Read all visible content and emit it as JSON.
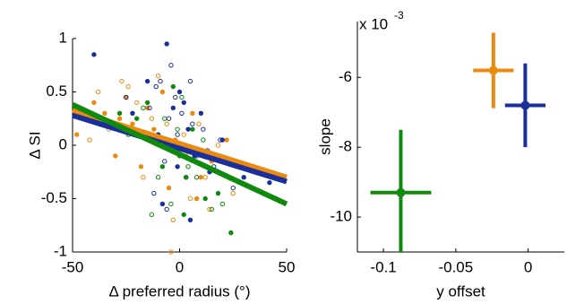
{
  "chart_data": [
    {
      "type": "scatter",
      "xlabel": "Δ preferred radius (°)",
      "ylabel": "Δ SI",
      "xlim": [
        -50,
        50
      ],
      "xticks": [
        -50,
        0,
        50
      ],
      "ylim": [
        -1,
        1
      ],
      "yticks": [
        -1,
        -0.5,
        0,
        0.5,
        1
      ],
      "series": [
        {
          "color": "#ea8a10",
          "marker": "filled",
          "x": [
            -48,
            -40,
            -35,
            -28,
            -22,
            -18,
            -12,
            -8,
            -5,
            -2,
            3,
            6,
            10,
            15,
            22,
            28,
            -30,
            -15,
            8,
            -25
          ],
          "values": [
            0.1,
            0.4,
            0.3,
            0.25,
            0.2,
            -0.2,
            0.15,
            0.5,
            -0.4,
            0.05,
            -0.1,
            0.3,
            -0.3,
            -0.15,
            0.05,
            -0.2,
            -0.1,
            0.35,
            -0.5,
            0.45
          ]
        },
        {
          "color": "#ea8a10",
          "marker": "open",
          "x": [
            -45,
            -38,
            -33,
            -27,
            -20,
            -17,
            -13,
            -10,
            -6,
            -3,
            2,
            5,
            9,
            12,
            18,
            25,
            35,
            -42,
            -24,
            14,
            -4
          ],
          "values": [
            0.3,
            0.5,
            0.15,
            0.6,
            0.4,
            -0.3,
            0.25,
            0.65,
            0.2,
            -0.7,
            0.1,
            -0.5,
            0.2,
            -0.3,
            0,
            -0.45,
            -0.25,
            0.05,
            0.55,
            -0.6,
            -1
          ]
        },
        {
          "color": "#1a2f99",
          "marker": "filled",
          "x": [
            -40,
            -30,
            -22,
            -15,
            -10,
            -6,
            -3,
            -1,
            2,
            4,
            7,
            10,
            14,
            20,
            30,
            42,
            -8,
            0,
            5
          ],
          "values": [
            0.85,
            0.2,
            0.3,
            0.6,
            0.1,
            0.95,
            0.35,
            -0.2,
            0.4,
            0.15,
            -0.1,
            0.3,
            -0.25,
            0.05,
            -0.3,
            -0.35,
            -0.55,
            0.5,
            -0.7
          ]
        },
        {
          "color": "#1a2f99",
          "marker": "open",
          "x": [
            -35,
            -25,
            -18,
            -14,
            -11,
            -9,
            -7,
            -5,
            -4,
            -2,
            -1,
            1,
            3,
            5,
            6,
            8,
            11,
            13,
            16,
            19,
            25,
            -12,
            -6
          ],
          "values": [
            0.2,
            0.45,
            0.1,
            0.35,
            0.55,
            0.6,
            -0.15,
            0.25,
            0.75,
            0.45,
            0.1,
            0.3,
            -0.3,
            0.6,
            0.2,
            -0.1,
            0.15,
            -0.05,
            -0.2,
            0.05,
            -0.4,
            -0.45,
            -0.6
          ]
        },
        {
          "color": "#0f8a0f",
          "marker": "filled",
          "x": [
            -28,
            -20,
            -12,
            -8,
            -3,
            0,
            3,
            6,
            12,
            18,
            24,
            -15,
            2
          ],
          "values": [
            0.3,
            0.25,
            0.05,
            -0.2,
            0.55,
            -0.1,
            -0.3,
            0.15,
            -0.5,
            -0.45,
            -0.82,
            0.4,
            -0.65
          ]
        },
        {
          "color": "#0f8a0f",
          "marker": "open",
          "x": [
            -24,
            -17,
            -10,
            -7,
            -4,
            -1,
            1,
            4,
            8,
            11,
            15,
            20,
            -13
          ],
          "values": [
            0.1,
            0.35,
            -0.3,
            0.25,
            -0.55,
            0.15,
            0.45,
            -0.2,
            -0.3,
            0.05,
            -0.6,
            -0.55,
            -0.65
          ]
        }
      ],
      "fits": [
        {
          "color": "#ea8a10",
          "x": [
            -50,
            50
          ],
          "values": [
            0.33,
            -0.3
          ]
        },
        {
          "color": "#1a2f99",
          "x": [
            -50,
            50
          ],
          "values": [
            0.28,
            -0.34
          ]
        },
        {
          "color": "#0f8a0f",
          "x": [
            -50,
            50
          ],
          "values": [
            0.38,
            -0.55
          ]
        }
      ]
    },
    {
      "type": "errorbar",
      "xlabel": "y offset",
      "ylabel": "slope",
      "scale_label": {
        "base": "x 10",
        "exponent": "-3"
      },
      "xlim": [
        -0.118,
        0.025
      ],
      "xticks": [
        -0.1,
        -0.05,
        0
      ],
      "ylim": [
        -11,
        -4.4
      ],
      "yticks": [
        -10,
        -8,
        -6
      ],
      "series": [
        {
          "color": "#ea8a10",
          "x": [
            -0.024
          ],
          "x_err": [
            0.014
          ],
          "values": [
            -5.8
          ],
          "y_err": [
            1.08
          ]
        },
        {
          "color": "#1a2f99",
          "x": [
            -0.002
          ],
          "x_err": [
            0.014
          ],
          "values": [
            -6.8
          ],
          "y_err": [
            1.2
          ]
        },
        {
          "color": "#0f8a0f",
          "x": [
            -0.088
          ],
          "x_err": [
            0.021
          ],
          "values": [
            -9.3
          ],
          "y_err": [
            1.8
          ]
        }
      ]
    }
  ]
}
